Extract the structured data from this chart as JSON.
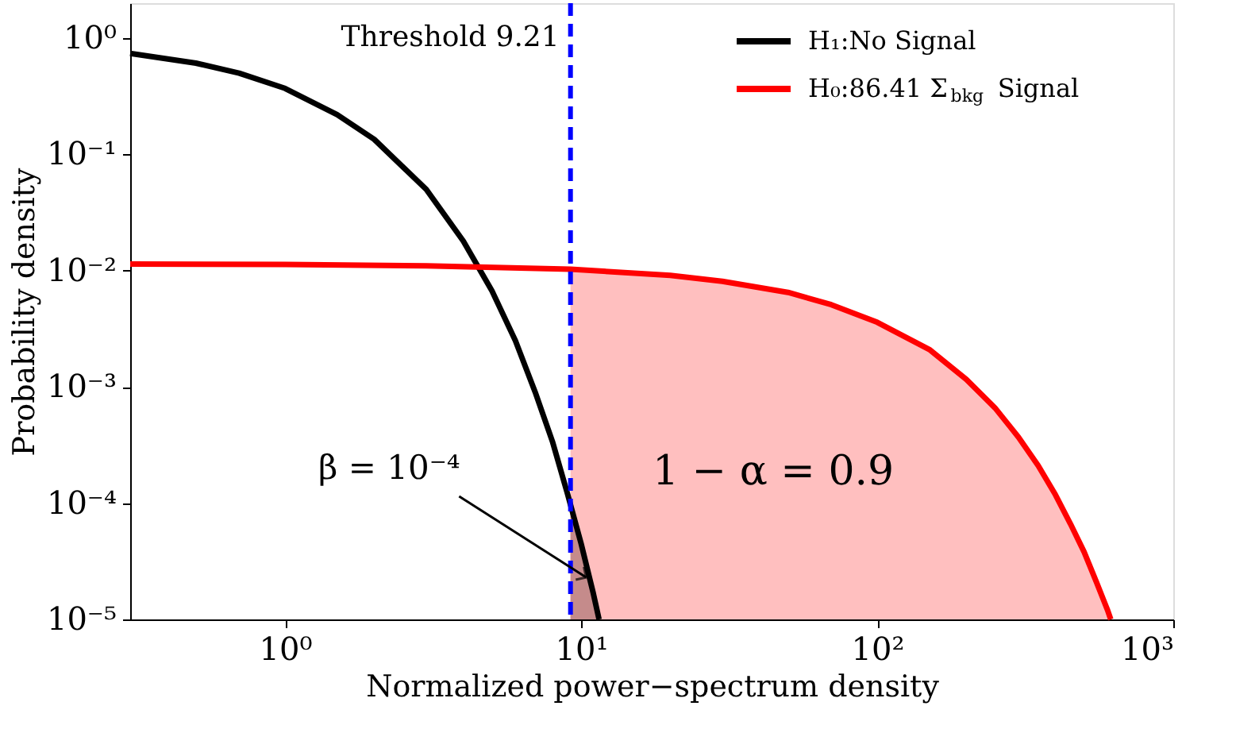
{
  "chart_data": {
    "type": "line",
    "xlabel": "Normalized power−spectrum density",
    "ylabel": "Probability density",
    "log": "xy",
    "grid": false,
    "legend": "top right",
    "marker": "none",
    "line_style": "solid",
    "xlim": [
      0.3,
      1000
    ],
    "ylim": [
      1e-05,
      2
    ],
    "xticks": [
      {
        "value": 1,
        "label": "10⁰"
      },
      {
        "value": 10,
        "label": "10¹"
      },
      {
        "value": 100,
        "label": "10²"
      },
      {
        "value": 1000,
        "label": "10³"
      }
    ],
    "yticks": [
      {
        "value": 1e-05,
        "label": "10⁻⁵"
      },
      {
        "value": 0.0001,
        "label": "10⁻⁴"
      },
      {
        "value": 0.001,
        "label": "10⁻³"
      },
      {
        "value": 0.01,
        "label": "10⁻²"
      },
      {
        "value": 0.1,
        "label": "10⁻¹"
      },
      {
        "value": 1,
        "label": "10⁰"
      }
    ],
    "series": [
      {
        "type": "area",
        "color": "#ffbfbf",
        "x": [
          9.21,
          20,
          30,
          50,
          70,
          100,
          150,
          200,
          250,
          300,
          350,
          400,
          450,
          500,
          550,
          600,
          615
        ],
        "values": [
          0.0103,
          0.0091,
          0.0081,
          0.0065,
          0.0051,
          0.0036,
          0.0021,
          0.00116,
          0.00066,
          0.00037,
          0.00021,
          0.000118,
          6.6e-05,
          3.8e-05,
          2.1e-05,
          1.2e-05,
          1e-05
        ]
      },
      {
        "type": "area",
        "color": "#c58b8b",
        "x": [
          9.21,
          10,
          11,
          11.5
        ],
        "values": [
          0.0001,
          4.5e-05,
          1.67e-05,
          1e-05
        ]
      },
      {
        "name": "H₁:No Signal",
        "color": "#000000",
        "x": [
          0.3,
          0.5,
          0.7,
          1,
          1.5,
          2,
          3,
          4,
          5,
          6,
          7,
          8,
          9,
          10,
          11,
          11.5
        ],
        "values": [
          0.74,
          0.61,
          0.5,
          0.37,
          0.22,
          0.135,
          0.05,
          0.018,
          0.0067,
          0.0025,
          0.0009,
          0.00034,
          0.00012,
          4.5e-05,
          1.67e-05,
          1e-05
        ]
      },
      {
        "name": "H₀:86.41 Σ$_{bkg}$ Signal",
        "color": "#ff0000",
        "x": [
          0.3,
          1,
          3,
          9.21,
          20,
          30,
          50,
          70,
          100,
          150,
          200,
          250,
          300,
          350,
          400,
          450,
          500,
          550,
          600,
          615
        ],
        "values": [
          0.0114,
          0.0113,
          0.011,
          0.0103,
          0.0091,
          0.0081,
          0.0065,
          0.0051,
          0.0036,
          0.0021,
          0.00116,
          0.00066,
          0.00037,
          0.00021,
          0.000118,
          6.6e-05,
          3.8e-05,
          2.1e-05,
          1.2e-05,
          1e-05
        ]
      }
    ],
    "ref_lines": [
      {
        "axis": "x",
        "value": 9.21,
        "label": "Threshold 9.21",
        "color": "#0000ff",
        "line_style": "dashed"
      }
    ],
    "annotations": [
      {
        "text": "β = 10⁻⁴",
        "x": 10.4,
        "y": 2.3e-05
      },
      "1 − α = 0.9"
    ]
  }
}
